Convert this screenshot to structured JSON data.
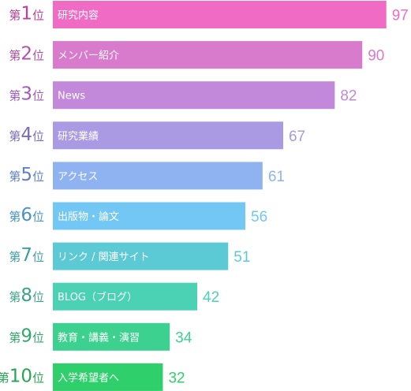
{
  "chart_data": {
    "type": "bar",
    "orientation": "horizontal",
    "ranks": [
      {
        "prefix": "第",
        "number": "1",
        "suffix": "位"
      },
      {
        "prefix": "第",
        "number": "2",
        "suffix": "位"
      },
      {
        "prefix": "第",
        "number": "3",
        "suffix": "位"
      },
      {
        "prefix": "第",
        "number": "4",
        "suffix": "位"
      },
      {
        "prefix": "第",
        "number": "5",
        "suffix": "位"
      },
      {
        "prefix": "第",
        "number": "6",
        "suffix": "位"
      },
      {
        "prefix": "第",
        "number": "7",
        "suffix": "位"
      },
      {
        "prefix": "第",
        "number": "8",
        "suffix": "位"
      },
      {
        "prefix": "第",
        "number": "9",
        "suffix": "位"
      },
      {
        "prefix": "第",
        "number": "10",
        "suffix": "位"
      }
    ],
    "categories": [
      "研究内容",
      "メンバー紹介",
      "News",
      "研究業績",
      "アクセス",
      "出版物・論文",
      "リンク / 関連サイト",
      "BLOG（ブログ）",
      "教育・講義・演習",
      "入学希望者へ"
    ],
    "values": [
      97,
      90,
      82,
      67,
      61,
      56,
      51,
      42,
      34,
      32
    ],
    "xlim": [
      0,
      100
    ],
    "colors": [
      "#f06cc4",
      "#d97bcc",
      "#c288d9",
      "#a99ae3",
      "#8eb3f0",
      "#72c7f5",
      "#5ccad4",
      "#4bd1b4",
      "#3cd18e",
      "#2fd06b"
    ],
    "rank_colors": [
      "#c13f98",
      "#b44fa8",
      "#9c5cb8",
      "#7a6cc0",
      "#5e7fcc",
      "#4a93c4",
      "#3f9fa8",
      "#3ca48a",
      "#32a86a",
      "#28a452"
    ]
  }
}
